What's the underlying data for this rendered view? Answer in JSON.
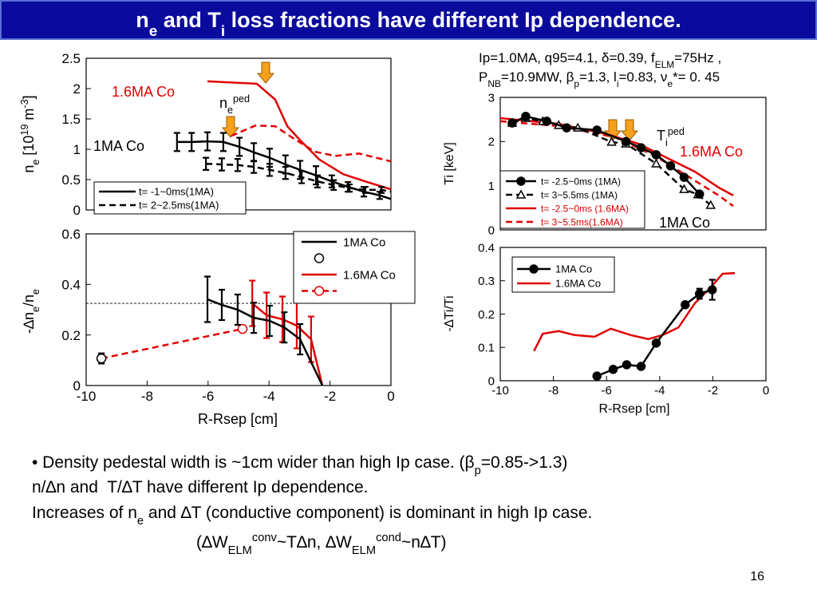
{
  "title": [
    "n",
    {
      "text": "e",
      "script": "sub"
    },
    " and T",
    {
      "text": "i",
      "script": "sub"
    },
    " loss fractions have different Ip dependence."
  ],
  "chart_data": [
    {
      "type": "line",
      "ylabel": [
        "n",
        {
          "text": "e",
          "script": "sub"
        },
        " [10",
        {
          "text": "19",
          "script": "sup"
        },
        " m",
        {
          "text": "-3",
          "script": "sup"
        },
        "]"
      ],
      "xlim": [
        -10,
        0
      ],
      "ylim": [
        0,
        2.5
      ],
      "yticks": [
        0,
        0.5,
        1,
        1.5,
        2,
        2.5
      ],
      "annotations": [
        {
          "text": [
            "1.6MA Co"
          ],
          "color": "#e00000"
        },
        {
          "text": [
            "1MA Co"
          ],
          "color": "#000000"
        },
        {
          "text": [
            "n",
            {
              "text": "e",
              "script": "sub"
            },
            {
              "text": "ped",
              "script": "sup"
            }
          ],
          "color": "#000000"
        }
      ],
      "series": [
        {
          "name": "t= -1~0ms(1MA)",
          "color": "#000000",
          "line": "solid",
          "marker": null,
          "x": [
            -7.02,
            -6.54,
            -6.02,
            -5.5,
            -4.97,
            -4.5,
            -3.98,
            -3.46,
            -2.98,
            -2.46,
            -1.94,
            -1.41,
            -0.89,
            -0.37,
            0
          ],
          "values": [
            1.12,
            1.12,
            1.13,
            1.12,
            1.04,
            0.95,
            0.86,
            0.75,
            0.66,
            0.57,
            0.47,
            0.38,
            0.3,
            0.24,
            0.18
          ],
          "errors": [
            0.15,
            0.15,
            0.15,
            0.15,
            0.15,
            0.15,
            0.15,
            0.15,
            0.15,
            0.15,
            0.1,
            0.08,
            0.08,
            0.06,
            null
          ]
        },
        {
          "name": "t= 2~2.5ms(1MA)",
          "color": "#000000",
          "line": "dashed",
          "marker": null,
          "x": [
            -6.07,
            -5.55,
            -5.03,
            -4.5,
            -3.98,
            -3.46,
            -2.93,
            -2.41,
            -1.88,
            -1.36,
            -0.84,
            -0.31,
            0
          ],
          "values": [
            0.76,
            0.75,
            0.74,
            0.71,
            0.66,
            0.61,
            0.54,
            0.47,
            0.41,
            0.36,
            0.33,
            0.33,
            0.3
          ],
          "errors": [
            0.1,
            0.1,
            0.1,
            0.1,
            0.1,
            0.1,
            0.1,
            0.1,
            0.08,
            0.06,
            0.05,
            0.05,
            null
          ]
        },
        {
          "name": null,
          "color": "#e00000",
          "line": "solid",
          "marker": null,
          "legend": false,
          "x": [
            -6.02,
            -4.4,
            -3.8,
            -3.4,
            -3.0,
            -2.35,
            -1.57,
            -0.78,
            0
          ],
          "values": [
            2.12,
            2.08,
            1.82,
            1.38,
            1.16,
            0.83,
            0.59,
            0.46,
            0.34
          ]
        },
        {
          "name": null,
          "color": "#e00000",
          "line": "dashed",
          "marker": null,
          "legend": false,
          "x": [
            -5.24,
            -4.45,
            -3.8,
            -3.14,
            -2.49,
            -1.83,
            -1.05,
            0
          ],
          "values": [
            1.22,
            1.39,
            1.38,
            1.16,
            0.96,
            0.89,
            0.93,
            0.8
          ]
        }
      ]
    },
    {
      "type": "line",
      "ylabel": [
        "-∆n",
        {
          "text": "e",
          "script": "sub"
        },
        "/n",
        {
          "text": "e",
          "script": "sub"
        }
      ],
      "xlabel": "R-Rsep [cm]",
      "xlim": [
        -10,
        0
      ],
      "ylim": [
        0,
        0.6
      ],
      "xticks": [
        -10,
        -8,
        -6,
        -4,
        -2,
        0
      ],
      "yticks": [
        0,
        0.2,
        0.4,
        0.6
      ],
      "hline": 0.325,
      "series": [
        {
          "name": "1MA Co",
          "color": "#000000",
          "line": "solid",
          "marker": null,
          "x": [
            -6.02,
            -5.55,
            -5.03,
            -4.5,
            -3.98,
            -3.5,
            -2.98,
            -2.6,
            -2.25
          ],
          "values": [
            0.341,
            0.319,
            0.3,
            0.268,
            0.256,
            0.23,
            0.183,
            0.088,
            0
          ],
          "errors": [
            0.09,
            0.06,
            0.06,
            0.06,
            0.06,
            0.06,
            0.06,
            null,
            null
          ]
        },
        {
          "name": null,
          "color": "#000000",
          "line": null,
          "marker": "open-circle",
          "x": [
            -9.5
          ],
          "values": [
            0.107
          ],
          "errors": [
            0.02
          ]
        },
        {
          "name": "1.6MA Co",
          "color": "#e00000",
          "line": "solid",
          "marker": null,
          "x": [
            -4.55,
            -4.08,
            -3.56,
            -3.09,
            -2.62,
            -2.46,
            -2.25
          ],
          "values": [
            0.325,
            0.278,
            0.262,
            0.237,
            0.183,
            0.104,
            0
          ],
          "errors": [
            0.09,
            0.09,
            0.09,
            0.09,
            0.09,
            null,
            null
          ]
        },
        {
          "name": null,
          "color": "#e00000",
          "line": "dashed",
          "marker": "open-circle",
          "x": [
            -9.5,
            -4.87
          ],
          "values": [
            0.107,
            0.224
          ]
        }
      ]
    },
    {
      "type": "line",
      "subtitle": [
        [
          "Ip=1.0MA, q95=4.1, δ=0.39, f",
          {
            "text": "ELM",
            "script": "sub"
          },
          "=75Hz ,"
        ],
        [
          "P",
          {
            "text": "NB",
            "script": "sub"
          },
          "=10.9MW, β",
          {
            "text": "p",
            "script": "sub"
          },
          "=1.3, l",
          {
            "text": "i",
            "script": "sub"
          },
          "=0.83, ν",
          {
            "text": "e",
            "script": "sub"
          },
          "*= 0. 45"
        ]
      ],
      "ylabel": "Ti [keV]",
      "xlim": [
        -10,
        0
      ],
      "ylim": [
        0,
        3
      ],
      "yticks": [
        0,
        1,
        2,
        3
      ],
      "annotations": [
        {
          "text": [
            "T",
            {
              "text": "i",
              "script": "sub"
            },
            {
              "text": "ped",
              "script": "sup"
            }
          ],
          "color": "#000000"
        },
        {
          "text": [
            "1.6MA Co"
          ],
          "color": "#e00000"
        },
        {
          "text": [
            "1MA Co"
          ],
          "color": "#000000"
        }
      ],
      "series": [
        {
          "name": "t= -2.5~0ms (1MA)",
          "color": "#000000",
          "line": "solid",
          "marker": "circle",
          "x": [
            -9.55,
            -9.04,
            -8.25,
            -7.5,
            -6.36,
            -5.27,
            -4.7,
            -4.13,
            -3.59,
            -3.08,
            -2.5
          ],
          "values": [
            2.42,
            2.57,
            2.46,
            2.31,
            2.26,
            2.0,
            1.86,
            1.7,
            1.45,
            1.19,
            0.81
          ]
        },
        {
          "name": "t= 3~5.5ms (1MA)",
          "color": "#000000",
          "line": "dashed",
          "marker": "open-triangle",
          "x": [
            -9.55,
            -9.04,
            -8.4,
            -7.8,
            -7.08,
            -5.81,
            -5.27,
            -4.13,
            -3.08,
            -2.56,
            -2.08
          ],
          "values": [
            2.42,
            2.53,
            2.46,
            2.37,
            2.31,
            1.99,
            1.95,
            1.5,
            0.92,
            0.8,
            0.56
          ]
        },
        {
          "name": "t= -2.5~0ms (1.6MA)",
          "color": "#e00000",
          "line": "solid",
          "marker": null,
          "x": [
            -10,
            -7.8,
            -6,
            -4.8,
            -3.59,
            -2.68,
            -1.78,
            -1.23
          ],
          "values": [
            2.53,
            2.4,
            2.17,
            1.95,
            1.59,
            1.32,
            0.96,
            0.78
          ]
        },
        {
          "name": "t= 3~5.5ms(1.6MA)",
          "color": "#e00000",
          "line": "dashed",
          "marker": null,
          "x": [
            -10,
            -7.8,
            -5.69,
            -4.19,
            -2.98,
            -1.78,
            -1.23
          ],
          "values": [
            2.46,
            2.35,
            2.1,
            1.68,
            1.23,
            0.78,
            0.54
          ]
        }
      ]
    },
    {
      "type": "line",
      "ylabel": "-∆Ti/Ti",
      "xlabel": "R-Rsep [cm]",
      "xlim": [
        -10,
        0
      ],
      "ylim": [
        0,
        0.4
      ],
      "xticks": [
        -10,
        -8,
        -6,
        -4,
        -2,
        0
      ],
      "yticks": [
        0,
        0.1,
        0.2,
        0.3,
        0.4
      ],
      "series": [
        {
          "name": "1MA Co",
          "color": "#000000",
          "line": "solid",
          "marker": "circle",
          "x": [
            -6.36,
            -5.75,
            -5.24,
            -4.7,
            -4.13,
            -3.04,
            -2.5,
            -2.02
          ],
          "values": [
            0.014,
            0.034,
            0.048,
            0.043,
            0.113,
            0.228,
            0.261,
            0.273
          ],
          "errors": [
            null,
            null,
            null,
            null,
            null,
            null,
            0.015,
            0.03
          ]
        },
        {
          "name": "1.6MA Co",
          "color": "#e00000",
          "line": "solid",
          "marker": null,
          "x": [
            -8.73,
            -8.4,
            -7.8,
            -7.2,
            -6.45,
            -5.84,
            -5.09,
            -4.43,
            -3.89,
            -3.29,
            -2.68,
            -2.08,
            -1.63,
            -1.17
          ],
          "values": [
            0.089,
            0.141,
            0.149,
            0.137,
            0.132,
            0.156,
            0.137,
            0.125,
            0.137,
            0.16,
            0.232,
            0.28,
            0.321,
            0.323
          ]
        }
      ]
    }
  ],
  "bullets": [
    [
      "• Density pedestal width is ~1cm wider than high Ip case. (β",
      {
        "text": "p",
        "script": "sub"
      },
      "=0.85->1.3)"
    ],
    [
      "n/∆n and  T/∆T have different Ip dependence."
    ],
    [
      "Increases of n",
      {
        "text": "e",
        "script": "sub"
      },
      " and ∆T (conductive component) is dominant in high Ip case."
    ],
    [
      "(∆W",
      {
        "text": "ELM",
        "script": "sub"
      },
      {
        "text": "conv",
        "script": "sup"
      },
      "~T∆n, ∆W",
      {
        "text": "ELM",
        "script": "sub"
      },
      {
        "text": "cond",
        "script": "sup"
      },
      "~n∆T)"
    ]
  ],
  "page_number": "16"
}
